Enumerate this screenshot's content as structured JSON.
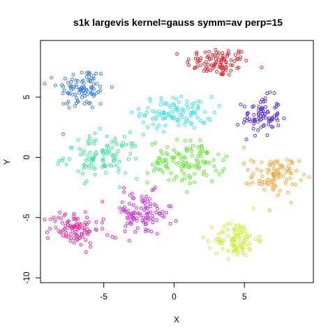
{
  "chart_data": {
    "type": "scatter",
    "title": "s1k largevis kernel=gauss symm=av perp=15",
    "xlabel": "X",
    "ylabel": "Y",
    "xlim": [
      -9.5,
      9.9
    ],
    "ylim": [
      -10.4,
      9.7
    ],
    "x_ticks": [
      -5,
      0,
      5
    ],
    "x_tick_labels": [
      "-5",
      "0",
      "5"
    ],
    "y_ticks": [
      -10,
      -5,
      0,
      5
    ],
    "y_tick_labels": [
      "-10",
      "-5",
      "0",
      "5"
    ],
    "grid": false,
    "legend": "none",
    "series": [
      {
        "color": "#E8242B",
        "center": [
          3.1,
          7.9
        ],
        "spread": [
          1.5,
          0.8
        ],
        "count": 95
      },
      {
        "color": "#3A7CE8",
        "center": [
          -6.5,
          5.7
        ],
        "spread": [
          1.2,
          1.2
        ],
        "count": 95
      },
      {
        "color": "#5B2EE6",
        "center": [
          6.2,
          3.4
        ],
        "spread": [
          0.9,
          1.1
        ],
        "count": 85
      },
      {
        "color": "#33E6E6",
        "center": [
          0.2,
          3.7
        ],
        "spread": [
          1.7,
          0.9
        ],
        "count": 100
      },
      {
        "color": "#38E89A",
        "center": [
          -5.1,
          0.1
        ],
        "spread": [
          1.8,
          1.2
        ],
        "count": 110
      },
      {
        "color": "#55EE22",
        "center": [
          0.9,
          -0.4
        ],
        "spread": [
          1.8,
          1.2
        ],
        "count": 115
      },
      {
        "color": "#F4A535",
        "center": [
          7.2,
          -1.5
        ],
        "spread": [
          1.1,
          1.0
        ],
        "count": 90
      },
      {
        "color": "#CC2BE2",
        "center": [
          -2.4,
          -4.7
        ],
        "spread": [
          1.5,
          1.2
        ],
        "count": 105
      },
      {
        "color": "#EE2A9C",
        "center": [
          -7.1,
          -5.9
        ],
        "spread": [
          1.2,
          1.0
        ],
        "count": 95
      },
      {
        "color": "#C8F028",
        "center": [
          4.4,
          -6.8
        ],
        "spread": [
          1.0,
          1.0
        ],
        "count": 90
      }
    ],
    "marker": "open-circle"
  }
}
